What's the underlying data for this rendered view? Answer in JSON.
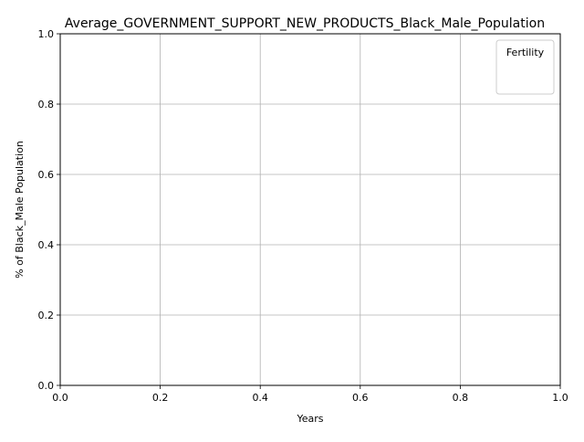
{
  "chart_data": {
    "type": "line",
    "title": "Average_GOVERNMENT_SUPPORT_NEW_PRODUCTS_Black_Male_Population",
    "xlabel": "Years",
    "ylabel": "% of Black_Male Population",
    "xlim": [
      0.0,
      1.0
    ],
    "ylim": [
      0.0,
      1.0
    ],
    "x_ticks": [
      "0.0",
      "0.2",
      "0.4",
      "0.6",
      "0.8",
      "1.0"
    ],
    "y_ticks": [
      "0.0",
      "0.2",
      "0.4",
      "0.6",
      "0.8",
      "1.0"
    ],
    "grid": true,
    "legend": {
      "title": "Fertility",
      "placement": "top-right",
      "entries": []
    },
    "series": []
  },
  "colors": {
    "grid": "#b0b0b0",
    "axes": "#000000",
    "legend_border": "#cccccc"
  }
}
